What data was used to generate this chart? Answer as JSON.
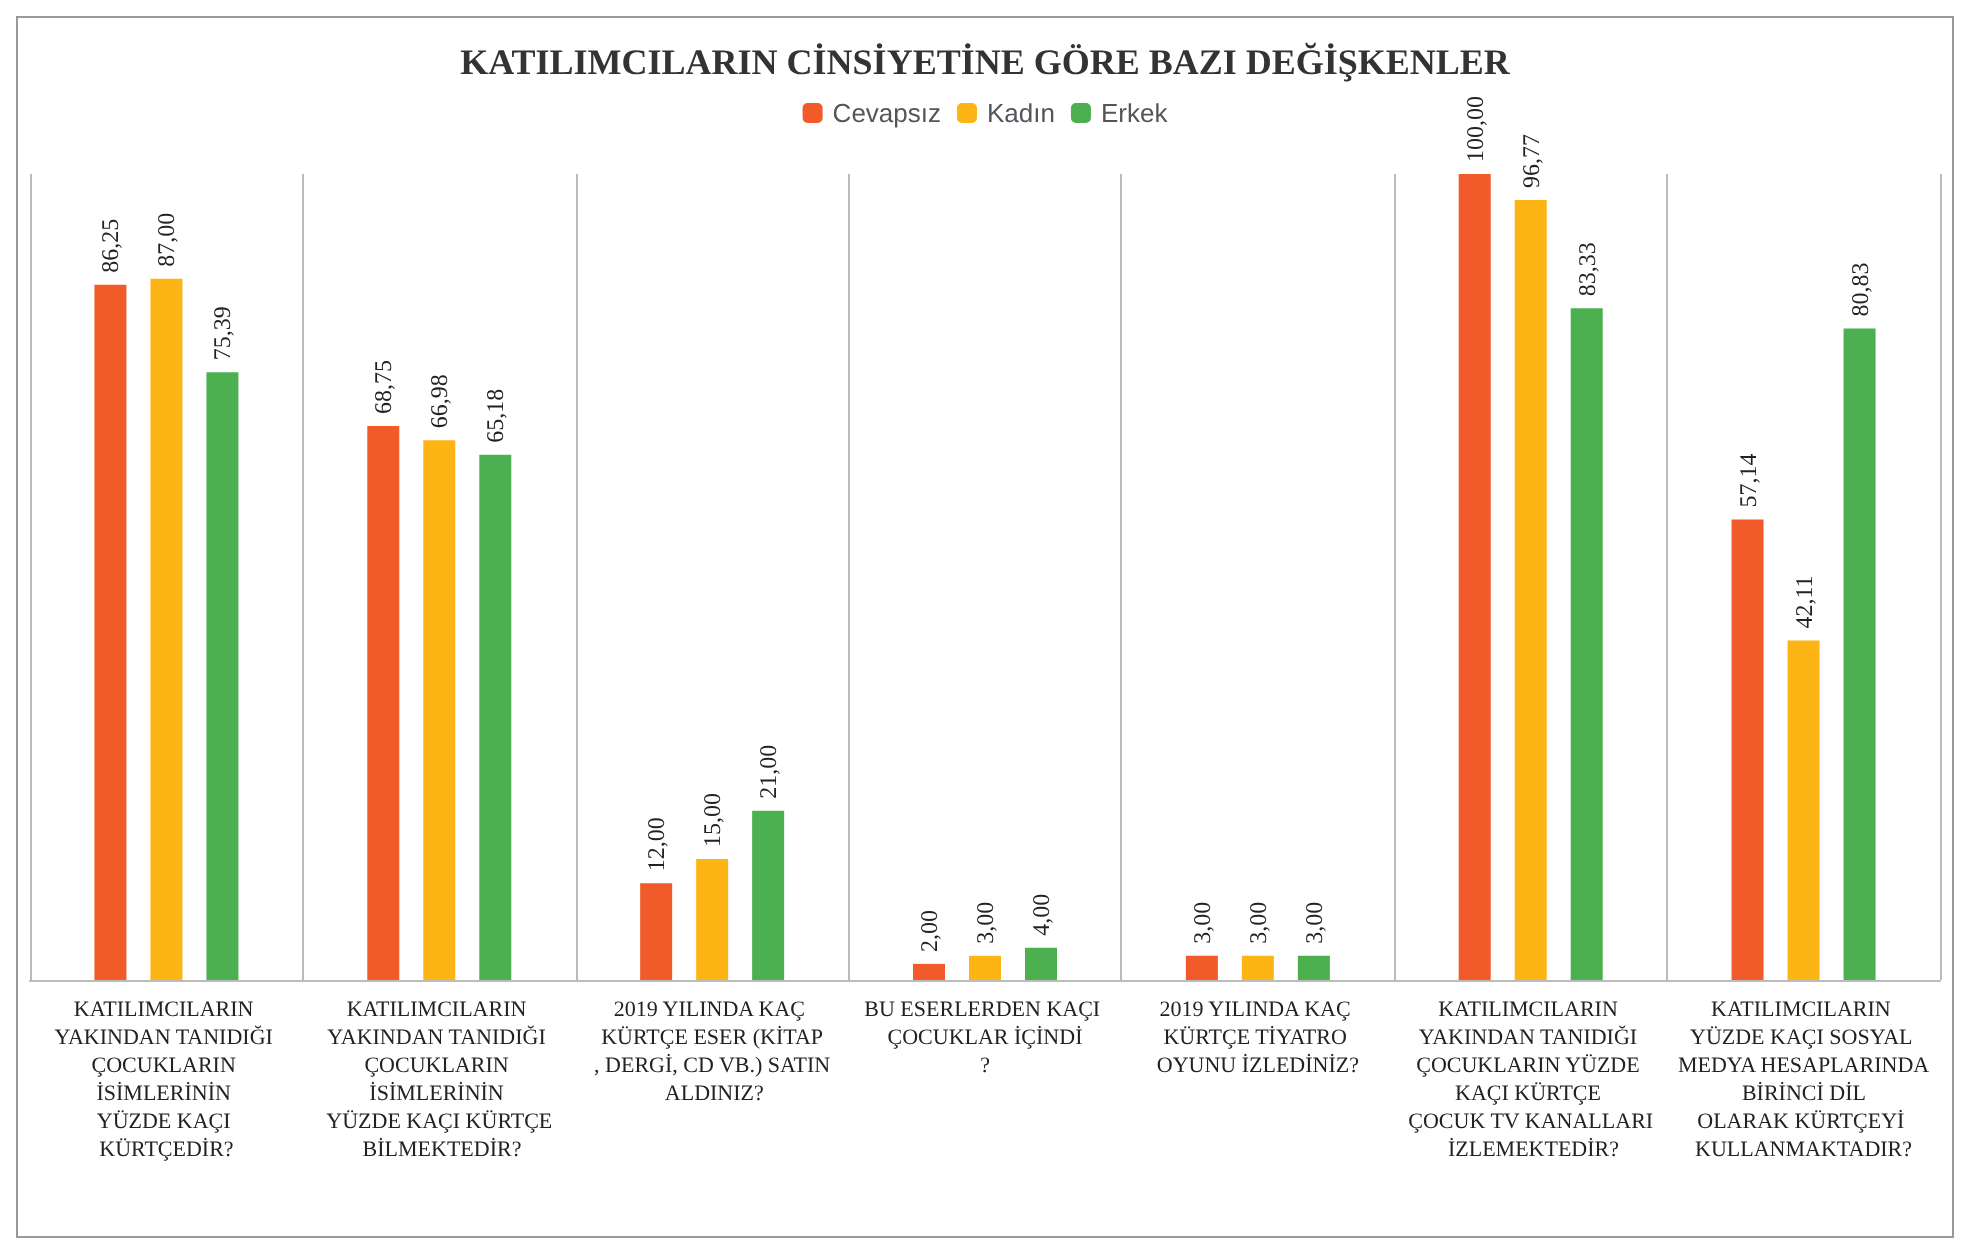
{
  "chart_data": {
    "type": "bar",
    "title": "KATILIMCILARIN CİNSİYETİNE GÖRE BAZI DEĞİŞKENLER",
    "categories": [
      "KATILIMCILARIN YAKINDAN TANIDIĞI ÇOCUKLARIN İSİMLERİNİN YÜZDE KAÇI KÜRTÇEDİR?",
      "KATILIMCILARIN YAKINDAN TANIDIĞI ÇOCUKLARIN İSİMLERİNİN YÜZDE KAÇI KÜRTÇE BİLMEKTEDİR?",
      "2019 YILINDA KAÇ KÜRTÇE ESER (KİTAP, DERGİ, CD VB.) SATIN ALDINIZ?",
      "BU ESERLERDEN KAÇI ÇOCUKLAR İÇİNDİ?",
      "2019 YILINDA KAÇ KÜRTÇE TİYATRO OYUNU İZLEDİNİZ?",
      "KATILIMCILARIN YAKINDAN TANIDIĞI ÇOCUKLARIN YÜZDE KAÇI KÜRTÇE ÇOCUK TV KANALLARI İZLEMEKTEDİR?",
      "KATILIMCILARIN YÜZDE KAÇI SOSYAL MEDYA HESAPLARINDA BİRİNCİ DİL OLARAK KÜRTÇEYİ KULLANMAKTADIR?"
    ],
    "series": [
      {
        "name": "Cevapsız",
        "color": "#f15a29",
        "values": [
          86.25,
          68.75,
          12,
          2,
          3,
          100,
          57.14
        ],
        "value_labels": [
          "86,25",
          "68,75",
          "12,00",
          "2,00",
          "3,00",
          "100,00",
          "57,14"
        ]
      },
      {
        "name": "Kadın",
        "color": "#fdb515",
        "values": [
          87,
          66.98,
          15,
          3,
          3,
          96.77,
          42.11
        ],
        "value_labels": [
          "87,00",
          "66,98",
          "15,00",
          "3,00",
          "3,00",
          "96,77",
          "42,11"
        ]
      },
      {
        "name": "Erkek",
        "color": "#4caf50",
        "values": [
          75.39,
          65.18,
          21,
          4,
          3,
          83.33,
          80.83
        ],
        "value_labels": [
          "75,39",
          "65,18",
          "21,00",
          "4,00",
          "3,00",
          "83,33",
          "80,83"
        ]
      }
    ],
    "legend": "top",
    "grid": "x"
  }
}
